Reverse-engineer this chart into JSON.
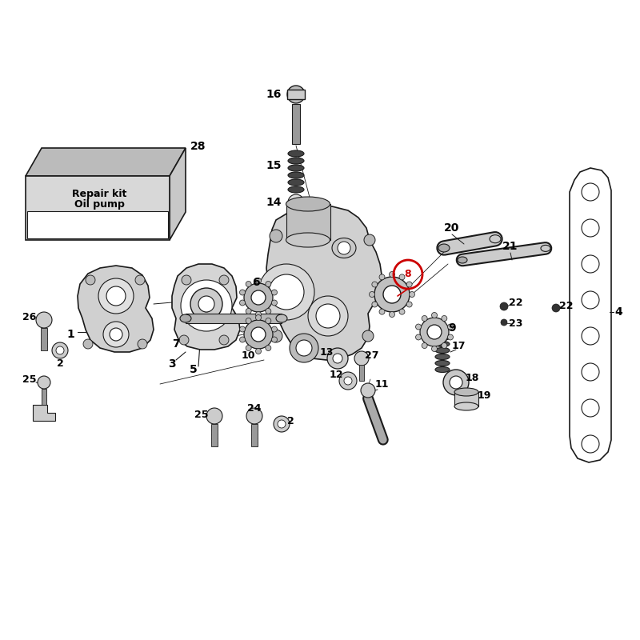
{
  "bg_color": "#ffffff",
  "lc": "#1a1a1a",
  "red": "#cc0000",
  "gray1": "#cccccc",
  "gray2": "#aaaaaa",
  "gray3": "#888888",
  "gray4": "#555555",
  "gray5": "#dddddd",
  "gray6": "#eeeeee",
  "kit_top": "#bbbbbb",
  "kit_face": "#d8d8d8",
  "kit_side": "#c8c8c8",
  "figsize": [
    8.0,
    8.0
  ],
  "dpi": 100
}
